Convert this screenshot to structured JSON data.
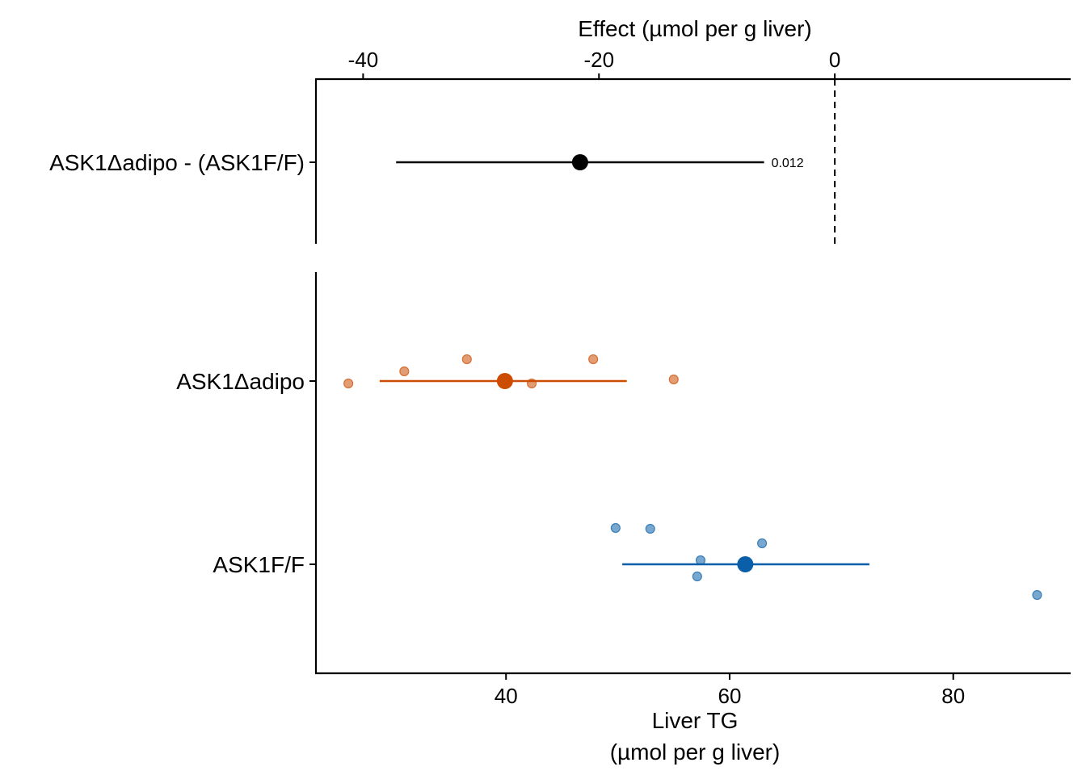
{
  "chart_data": [
    {
      "panel": "effect",
      "type": "scatter",
      "xlabel": "Effect (µmol per g liver)",
      "xaxis_position": "top",
      "xlim": [
        -44,
        20
      ],
      "x_ticks": [
        -40,
        -20,
        0
      ],
      "x_tick_labels": [
        "-40",
        "-20",
        "0"
      ],
      "reference_line": 0,
      "categories": [
        "ASK1Δadipo - (ASK1F/F)"
      ],
      "points": [
        {
          "label": "ASK1Δadipo - (ASK1F/F)",
          "estimate": -21.6,
          "ci": [
            -37.2,
            -6.0
          ],
          "p_value": "0.012",
          "color": "#000000"
        }
      ]
    },
    {
      "panel": "response",
      "type": "scatter",
      "xlabel_lines": [
        "Liver TG",
        "(µmol per g liver)"
      ],
      "xaxis_position": "bottom",
      "xlim": [
        23,
        90.5
      ],
      "x_ticks": [
        40,
        60,
        80
      ],
      "x_tick_labels": [
        "40",
        "60",
        "80"
      ],
      "categories": [
        "ASK1Δadipo",
        "ASK1F/F"
      ],
      "series": [
        {
          "name": "ASK1Δadipo",
          "color": "#CC4C02",
          "mean": 39.9,
          "ci": [
            28.7,
            50.8
          ],
          "observations": [
            {
              "x": 25.9,
              "jitter": -0.03
            },
            {
              "x": 30.9,
              "jitter": 0.12
            },
            {
              "x": 36.5,
              "jitter": 0.27
            },
            {
              "x": 42.3,
              "jitter": -0.03
            },
            {
              "x": 47.8,
              "jitter": 0.27
            },
            {
              "x": 55.0,
              "jitter": 0.02
            }
          ]
        },
        {
          "name": "ASK1F/F",
          "color": "#0A5FA8",
          "mean": 61.4,
          "ci": [
            50.4,
            72.5
          ],
          "observations": [
            {
              "x": 49.8,
              "jitter": 0.45
            },
            {
              "x": 52.9,
              "jitter": 0.44
            },
            {
              "x": 57.1,
              "jitter": -0.15
            },
            {
              "x": 57.4,
              "jitter": 0.05
            },
            {
              "x": 62.9,
              "jitter": 0.26
            },
            {
              "x": 87.5,
              "jitter": -0.38
            }
          ]
        }
      ]
    }
  ]
}
